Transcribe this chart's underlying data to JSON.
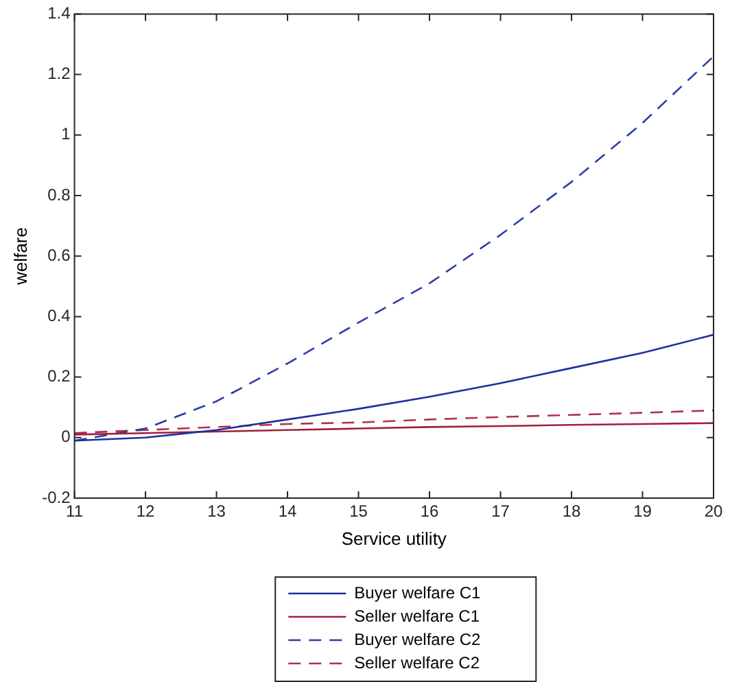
{
  "chart_data": {
    "type": "line",
    "xlabel": "Service utility",
    "ylabel": "welfare",
    "x": [
      11,
      12,
      13,
      14,
      15,
      16,
      17,
      18,
      19,
      20
    ],
    "series": [
      {
        "name": "Buyer welfare C1",
        "color": "#1f2f9e",
        "line_style": "solid",
        "values": [
          -0.01,
          0.0,
          0.025,
          0.06,
          0.095,
          0.135,
          0.18,
          0.23,
          0.28,
          0.34
        ]
      },
      {
        "name": "Seller welfare C1",
        "color": "#a0203a",
        "line_style": "solid",
        "values": [
          0.01,
          0.015,
          0.02,
          0.025,
          0.03,
          0.035,
          0.038,
          0.042,
          0.045,
          0.048
        ]
      },
      {
        "name": "Buyer welfare C2",
        "color": "#2a3ea8",
        "line_style": "dashed",
        "values": [
          -0.01,
          0.03,
          0.12,
          0.245,
          0.38,
          0.51,
          0.67,
          0.845,
          1.04,
          1.26
        ]
      },
      {
        "name": "Seller welfare C2",
        "color": "#b0304a",
        "line_style": "dashed",
        "values": [
          0.015,
          0.025,
          0.035,
          0.045,
          0.05,
          0.06,
          0.068,
          0.075,
          0.082,
          0.09
        ]
      }
    ],
    "xlim": [
      11,
      20
    ],
    "xticks": [
      11,
      12,
      13,
      14,
      15,
      16,
      17,
      18,
      19,
      20
    ],
    "ylim": [
      -0.2,
      1.4
    ],
    "yticks": [
      -0.2,
      0,
      0.2,
      0.4,
      0.6,
      0.8,
      1,
      1.2,
      1.4
    ],
    "legend": "bottom",
    "marker": "none"
  }
}
